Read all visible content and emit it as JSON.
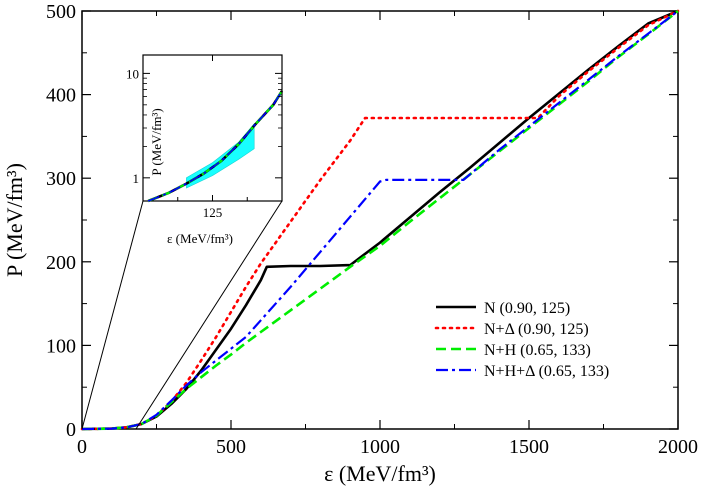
{
  "chart_data": {
    "type": "line",
    "xlabel": "ε (MeV/fm³)",
    "ylabel": "P (MeV/fm³)",
    "xlim": [
      0,
      2000
    ],
    "ylim": [
      0,
      500
    ],
    "xticks": [
      "0",
      "500",
      "1000",
      "1500",
      "2000"
    ],
    "yticks": [
      "0",
      "100",
      "200",
      "300",
      "400",
      "500"
    ],
    "legend_position": "lower-right",
    "series": [
      {
        "name": "N (0.90, 125)",
        "color": "#000000",
        "dash": "solid",
        "points": [
          [
            0,
            0
          ],
          [
            100,
            0.5
          ],
          [
            150,
            2
          ],
          [
            200,
            6
          ],
          [
            250,
            15
          ],
          [
            300,
            30
          ],
          [
            350,
            48
          ],
          [
            400,
            70
          ],
          [
            450,
            95
          ],
          [
            500,
            120
          ],
          [
            550,
            148
          ],
          [
            600,
            178
          ],
          [
            620,
            194
          ],
          [
            700,
            195
          ],
          [
            800,
            195
          ],
          [
            900,
            196
          ],
          [
            1000,
            223
          ],
          [
            1100,
            253
          ],
          [
            1200,
            283
          ],
          [
            1300,
            312
          ],
          [
            1400,
            342
          ],
          [
            1500,
            372
          ],
          [
            1600,
            401
          ],
          [
            1700,
            430
          ],
          [
            1800,
            458
          ],
          [
            1900,
            485
          ],
          [
            2000,
            500
          ]
        ]
      },
      {
        "name": "N+Δ (0.90, 125)",
        "color": "#ff0000",
        "dash": "dot",
        "points": [
          [
            0,
            0
          ],
          [
            100,
            0.5
          ],
          [
            150,
            2
          ],
          [
            200,
            6
          ],
          [
            250,
            16
          ],
          [
            300,
            33
          ],
          [
            350,
            55
          ],
          [
            400,
            82
          ],
          [
            450,
            110
          ],
          [
            500,
            140
          ],
          [
            550,
            170
          ],
          [
            600,
            198
          ],
          [
            700,
            248
          ],
          [
            800,
            298
          ],
          [
            900,
            345
          ],
          [
            950,
            372
          ],
          [
            1000,
            372
          ],
          [
            1200,
            372
          ],
          [
            1400,
            372
          ],
          [
            1530,
            372
          ],
          [
            1600,
            398
          ],
          [
            1700,
            428
          ],
          [
            1800,
            456
          ],
          [
            1900,
            483
          ],
          [
            2000,
            500
          ]
        ]
      },
      {
        "name": "N+H (0.65, 133)",
        "color": "#00ee00",
        "dash": "dash",
        "points": [
          [
            0,
            0
          ],
          [
            100,
            0.5
          ],
          [
            150,
            2
          ],
          [
            200,
            6
          ],
          [
            250,
            16
          ],
          [
            300,
            32
          ],
          [
            350,
            48
          ],
          [
            400,
            62
          ],
          [
            450,
            76
          ],
          [
            500,
            89
          ],
          [
            550,
            103
          ],
          [
            600,
            116
          ],
          [
            700,
            142
          ],
          [
            800,
            168
          ],
          [
            900,
            194
          ],
          [
            1000,
            219
          ],
          [
            1100,
            248
          ],
          [
            1200,
            276
          ],
          [
            1300,
            304
          ],
          [
            1400,
            332
          ],
          [
            1500,
            360
          ],
          [
            1600,
            388
          ],
          [
            1700,
            416
          ],
          [
            1800,
            445
          ],
          [
            1900,
            472
          ],
          [
            2000,
            500
          ]
        ]
      },
      {
        "name": "N+H+Δ (0.65, 133)",
        "color": "#0000ff",
        "dash": "dashdot",
        "points": [
          [
            0,
            0
          ],
          [
            100,
            0.5
          ],
          [
            150,
            2
          ],
          [
            200,
            6
          ],
          [
            250,
            17
          ],
          [
            300,
            34
          ],
          [
            350,
            52
          ],
          [
            400,
            68
          ],
          [
            450,
            82
          ],
          [
            500,
            96
          ],
          [
            550,
            110
          ],
          [
            600,
            130
          ],
          [
            700,
            170
          ],
          [
            800,
            212
          ],
          [
            900,
            254
          ],
          [
            1000,
            296
          ],
          [
            1020,
            298
          ],
          [
            1100,
            298
          ],
          [
            1200,
            298
          ],
          [
            1280,
            298
          ],
          [
            1300,
            304
          ],
          [
            1400,
            334
          ],
          [
            1500,
            362
          ],
          [
            1600,
            390
          ],
          [
            1700,
            418
          ],
          [
            1800,
            446
          ],
          [
            1900,
            473
          ],
          [
            2000,
            500
          ]
        ]
      }
    ],
    "inset": {
      "xlabel": "ε (MeV/fm³)",
      "ylabel": "P (MeV/fm³)",
      "xlim": [
        85,
        165
      ],
      "ylim_log": [
        0.6,
        15
      ],
      "xticks": [
        "125"
      ],
      "yticks": [
        "1",
        "10"
      ],
      "yscale": "log",
      "band_color": "#00ffff",
      "band_upper": [
        [
          110,
          1.0
        ],
        [
          125,
          1.4
        ],
        [
          140,
          2.2
        ],
        [
          149,
          3.3
        ]
      ],
      "band_lower": [
        [
          110,
          0.8
        ],
        [
          125,
          1.05
        ],
        [
          140,
          1.5
        ],
        [
          149,
          1.9
        ]
      ],
      "curve": [
        [
          88,
          0.6
        ],
        [
          100,
          0.72
        ],
        [
          110,
          0.88
        ],
        [
          120,
          1.1
        ],
        [
          130,
          1.45
        ],
        [
          140,
          2.1
        ],
        [
          150,
          3.3
        ],
        [
          160,
          5.0
        ],
        [
          165,
          6.8
        ]
      ]
    }
  }
}
